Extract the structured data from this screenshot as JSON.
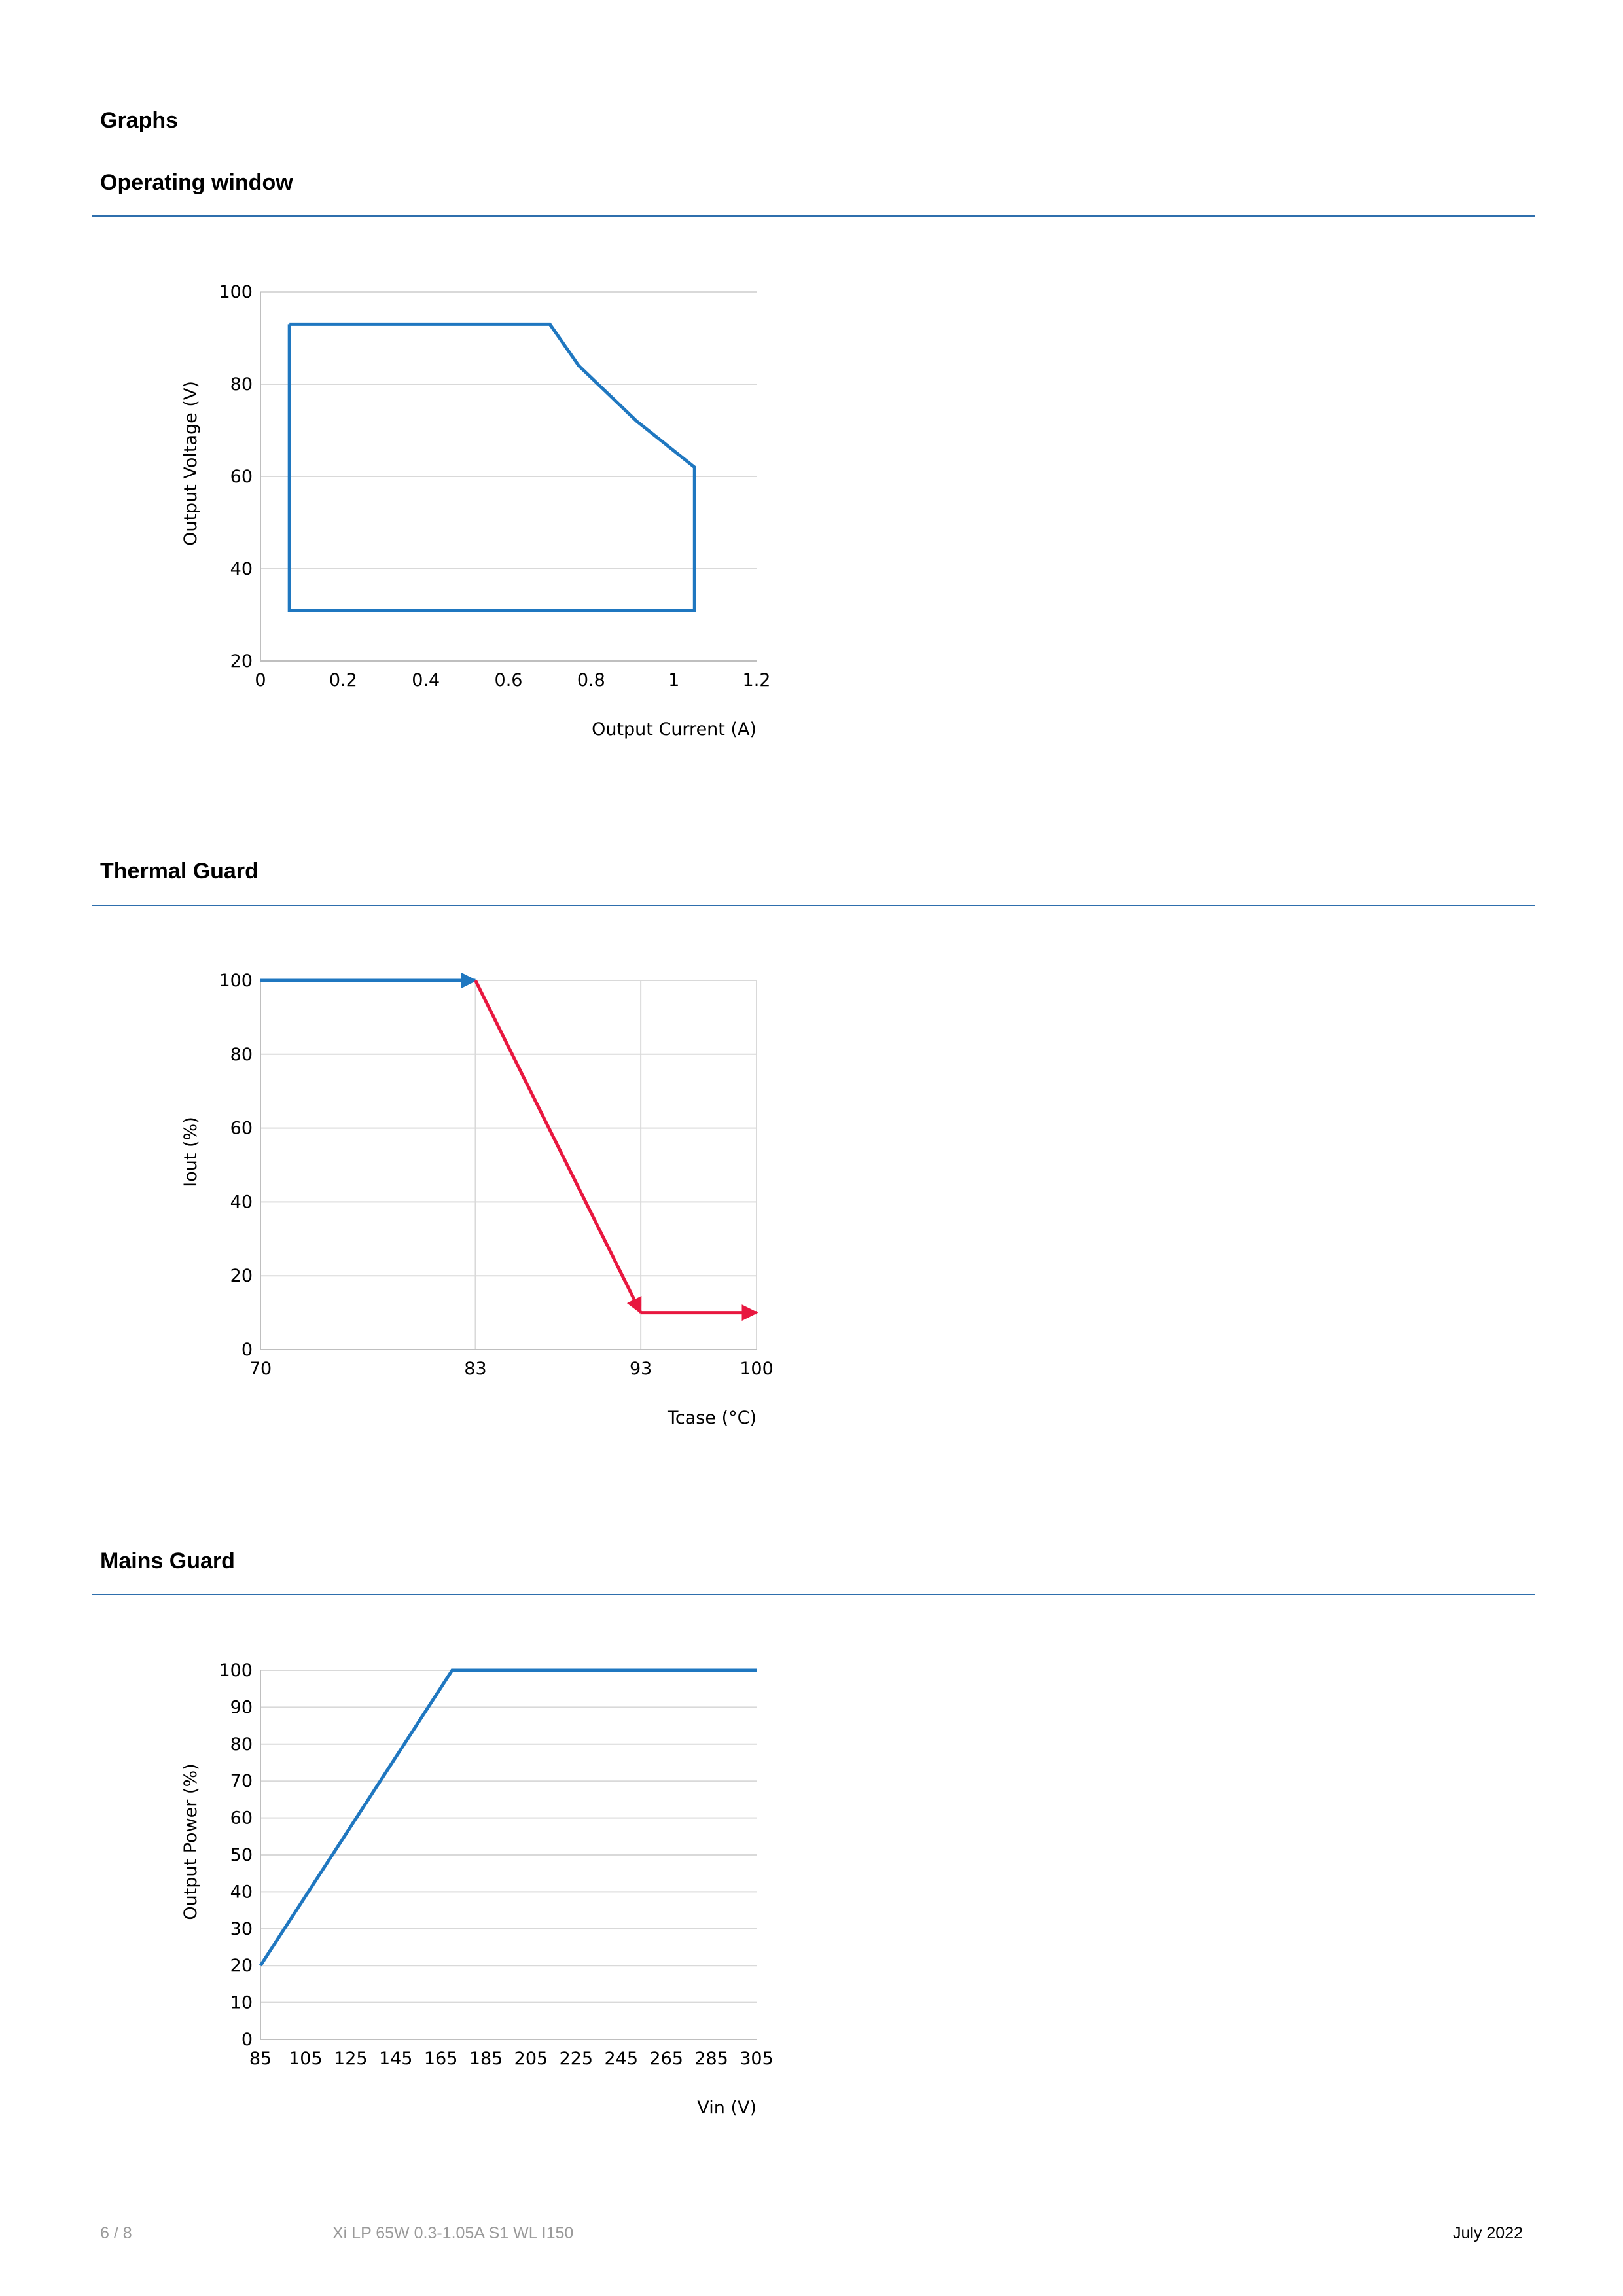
{
  "headings": {
    "graphs": "Graphs",
    "operating_window": "Operating window",
    "thermal_guard": "Thermal Guard",
    "mains_guard": "Mains Guard"
  },
  "footer": {
    "page": "6 / 8",
    "product": "Xi LP 65W 0.3-1.05A S1 WL I150",
    "date": "July 2022"
  },
  "colors": {
    "series_blue": "#1f77c0",
    "series_red": "#e8173f",
    "rule": "#2f6fad",
    "grid": "#d9d9d9"
  },
  "chart_data": [
    {
      "type": "line",
      "title": "",
      "xlabel": "Output Current (A)",
      "ylabel": "Output Voltage (V)",
      "xlim": [
        0,
        1.2
      ],
      "ylim": [
        20,
        100
      ],
      "xticks": [
        "0",
        "0.2",
        "0.4",
        "0.6",
        "0.8",
        "1",
        "1.2"
      ],
      "yticks": [
        "20",
        "40",
        "60",
        "80",
        "100"
      ],
      "grid": "horizontal",
      "series": [
        {
          "color": "#1f77c0",
          "x": [
            0.07,
            0.7,
            0.77,
            0.91,
            1.05,
            1.05,
            0.07,
            0.07
          ],
          "y": [
            93,
            93,
            84,
            72,
            62,
            31,
            31,
            93
          ]
        }
      ]
    },
    {
      "type": "line",
      "title": "",
      "xlabel": "Tcase (°C)",
      "ylabel": "Iout (%)",
      "xlim": [
        70,
        100
      ],
      "ylim": [
        0,
        100
      ],
      "xticks": [
        "70",
        "83",
        "93",
        "100"
      ],
      "yticks": [
        "0",
        "20",
        "40",
        "60",
        "80",
        "100"
      ],
      "grid": "both",
      "series": [
        {
          "color": "#1f77c0",
          "x": [
            70,
            83
          ],
          "y": [
            100,
            100
          ],
          "arrow_end": true
        },
        {
          "color": "#e8173f",
          "x": [
            83,
            93
          ],
          "y": [
            100,
            10
          ],
          "arrow_end": true
        },
        {
          "color": "#e8173f",
          "x": [
            93,
            100
          ],
          "y": [
            10,
            10
          ],
          "arrow_end": true
        }
      ]
    },
    {
      "type": "line",
      "title": "",
      "xlabel": "Vin (V)",
      "ylabel": "Output Power (%)",
      "xlim": [
        85,
        305
      ],
      "ylim": [
        0,
        100
      ],
      "xticks": [
        "85",
        "105",
        "125",
        "145",
        "165",
        "185",
        "205",
        "225",
        "245",
        "265",
        "285",
        "305"
      ],
      "yticks": [
        "0",
        "10",
        "20",
        "30",
        "40",
        "50",
        "60",
        "70",
        "80",
        "90",
        "100"
      ],
      "grid": "horizontal",
      "series": [
        {
          "color": "#1f77c0",
          "x": [
            85,
            170,
            305
          ],
          "y": [
            20,
            100,
            100
          ]
        }
      ]
    }
  ]
}
